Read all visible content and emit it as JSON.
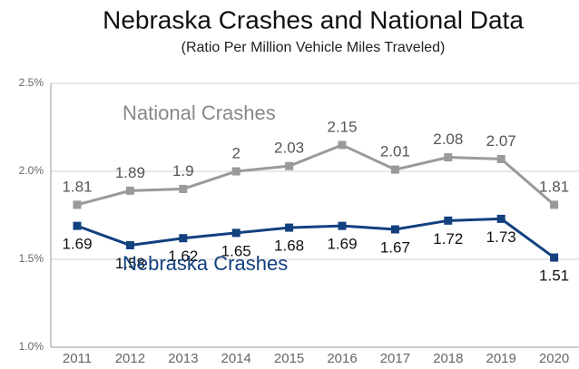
{
  "chart_data": {
    "type": "line",
    "title": "Nebraska Crashes and National Data",
    "subtitle": "(Ratio Per Million Vehicle Miles Traveled)",
    "categories": [
      "2011",
      "2012",
      "2013",
      "2014",
      "2015",
      "2016",
      "2017",
      "2018",
      "2019",
      "2020"
    ],
    "series": [
      {
        "name": "National Crashes",
        "color": "#9a9a9a",
        "values": [
          1.81,
          1.89,
          1.9,
          2,
          2.03,
          2.15,
          2.01,
          2.08,
          2.07,
          1.81
        ]
      },
      {
        "name": "Nebraska Crashes",
        "color": "#13407f",
        "values": [
          1.69,
          1.58,
          1.62,
          1.65,
          1.68,
          1.69,
          1.67,
          1.72,
          1.73,
          1.51
        ]
      }
    ],
    "ylim": [
      1,
      2.5
    ],
    "yticks": [
      {
        "value": 1,
        "label": "1.0%"
      },
      {
        "value": 1.5,
        "label": "1.5%"
      },
      {
        "value": 2,
        "label": "2.0%"
      },
      {
        "value": 2.5,
        "label": "2.5%"
      }
    ],
    "grid": true
  }
}
